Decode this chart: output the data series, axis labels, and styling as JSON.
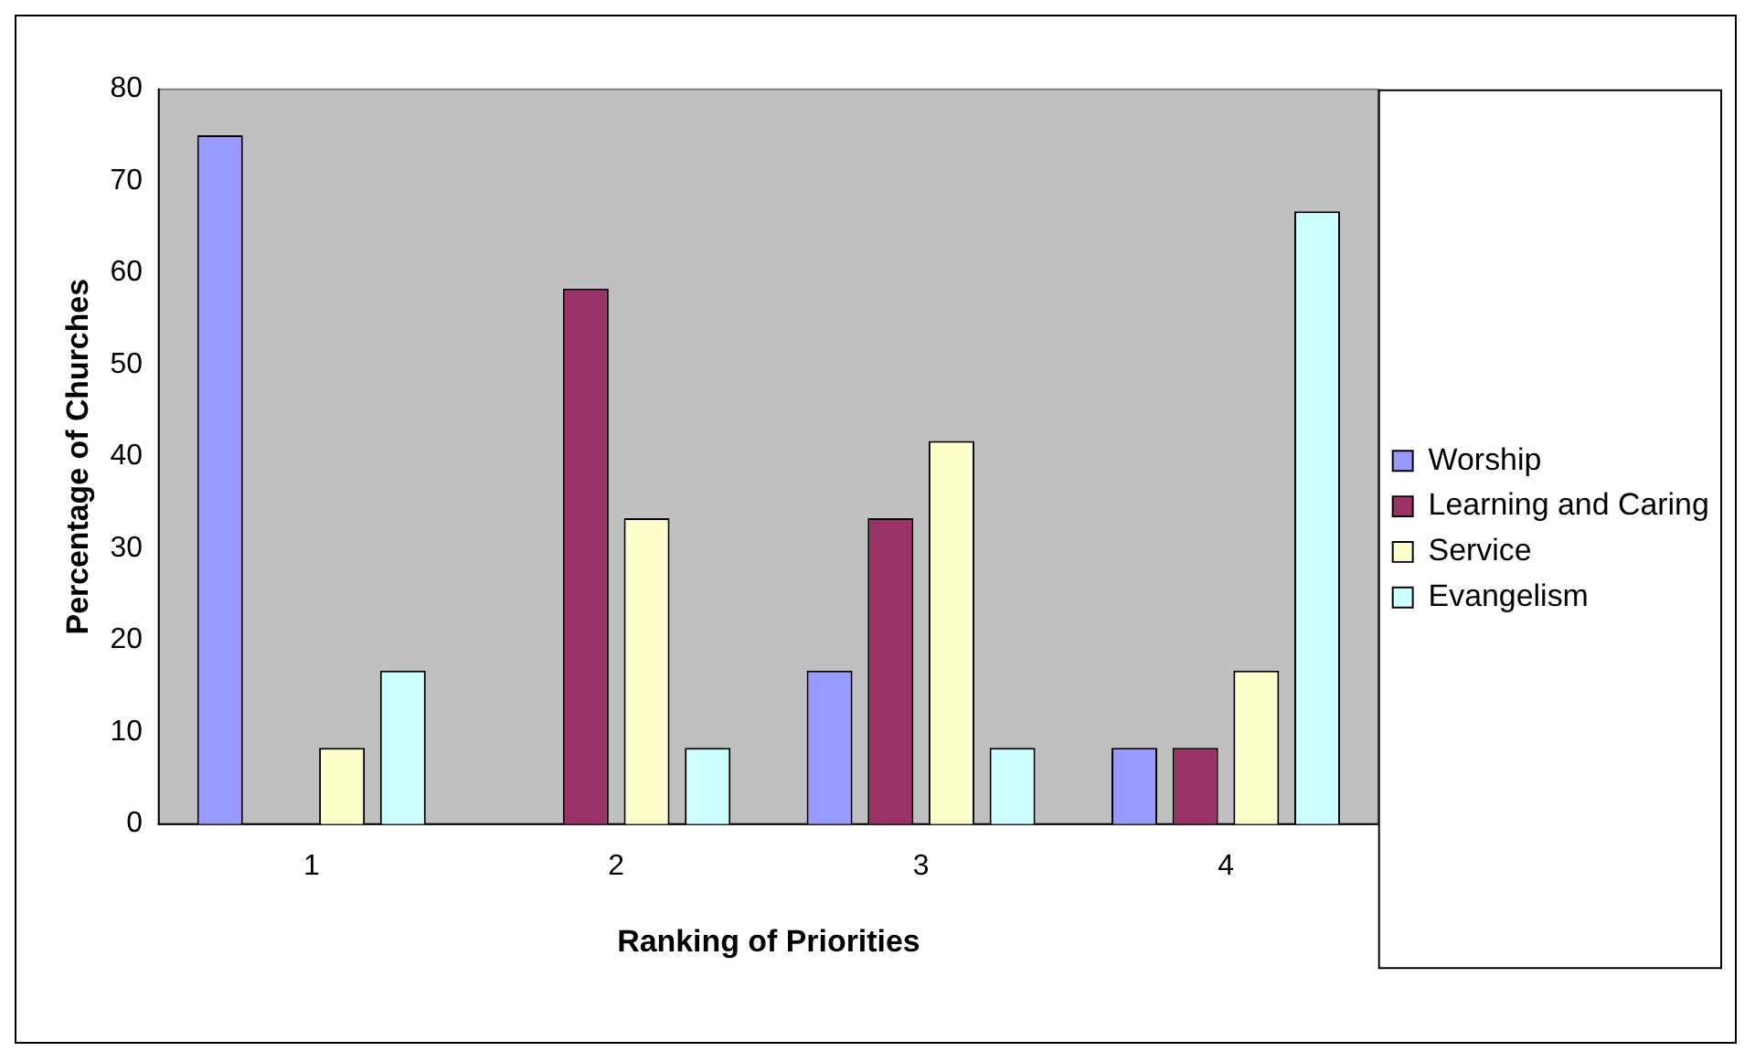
{
  "chart_data": {
    "type": "bar",
    "xlabel": "Ranking of Priorities",
    "ylabel": "Percentage of Churches",
    "categories": [
      "1",
      "2",
      "3",
      "4"
    ],
    "series": [
      {
        "name": "Worship",
        "color": "#9999ff",
        "values": [
          75,
          0,
          16.7,
          8.3
        ]
      },
      {
        "name": "Learning and Caring",
        "color": "#993366",
        "values": [
          0,
          58.3,
          33.3,
          8.3
        ]
      },
      {
        "name": "Service",
        "color": "#ffffcc",
        "values": [
          8.3,
          33.3,
          41.7,
          16.7
        ]
      },
      {
        "name": "Evangelism",
        "color": "#ccffff",
        "values": [
          16.7,
          8.3,
          8.3,
          66.7
        ]
      }
    ],
    "ylim": [
      0,
      80
    ],
    "yticks": [
      0,
      10,
      20,
      30,
      40,
      50,
      60,
      70,
      80
    ],
    "grid": false,
    "legend": "right"
  }
}
